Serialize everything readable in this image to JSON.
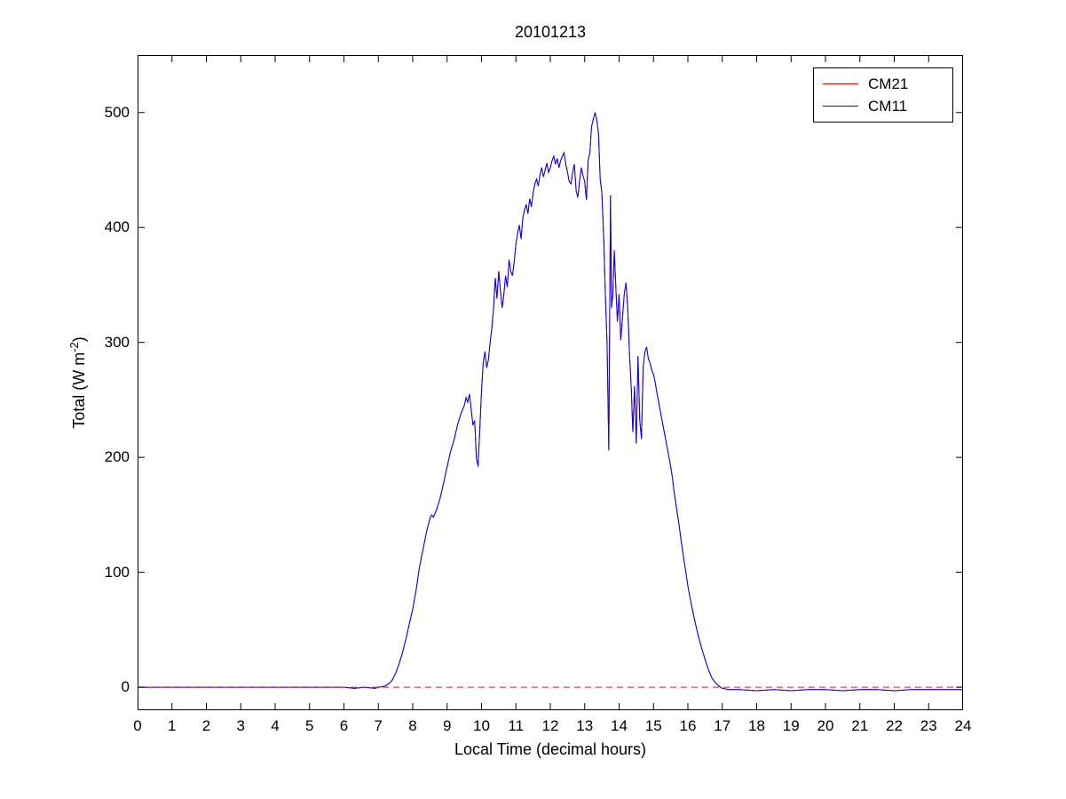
{
  "chart_data": {
    "type": "line",
    "title": "20101213",
    "xlabel": "Local Time (decimal hours)",
    "ylabel": "Total (W m^-2)",
    "ylabel_parts": {
      "prefix": "Total (W m",
      "sup": "-2",
      "suffix": ")"
    },
    "xlim": [
      0,
      24
    ],
    "ylim": [
      -20,
      550
    ],
    "xticks": [
      0,
      1,
      2,
      3,
      4,
      5,
      6,
      7,
      8,
      9,
      10,
      11,
      12,
      13,
      14,
      15,
      16,
      17,
      18,
      19,
      20,
      21,
      22,
      23,
      24
    ],
    "yticks": [
      0,
      100,
      200,
      300,
      400,
      500
    ],
    "grid": false,
    "legend_position": "top-right",
    "zero_line": {
      "y": 0,
      "color": "#cc2222",
      "style": "dashed"
    },
    "x": [
      0,
      0.5,
      1,
      1.5,
      2,
      2.5,
      3,
      3.5,
      4,
      4.5,
      5,
      5.5,
      6,
      6.3,
      6.6,
      6.9,
      7,
      7.2,
      7.3,
      7.4,
      7.5,
      7.6,
      7.7,
      7.8,
      7.9,
      8,
      8.1,
      8.2,
      8.3,
      8.4,
      8.5,
      8.55,
      8.6,
      8.7,
      8.8,
      8.9,
      9,
      9.1,
      9.2,
      9.3,
      9.4,
      9.5,
      9.55,
      9.6,
      9.65,
      9.7,
      9.75,
      9.8,
      9.85,
      9.9,
      9.95,
      10,
      10.05,
      10.1,
      10.15,
      10.2,
      10.25,
      10.3,
      10.35,
      10.4,
      10.45,
      10.5,
      10.55,
      10.6,
      10.65,
      10.7,
      10.75,
      10.8,
      10.85,
      10.9,
      10.95,
      11,
      11.05,
      11.1,
      11.15,
      11.2,
      11.25,
      11.3,
      11.35,
      11.4,
      11.45,
      11.5,
      11.55,
      11.6,
      11.65,
      11.7,
      11.75,
      11.8,
      11.85,
      11.9,
      11.95,
      12,
      12.05,
      12.1,
      12.15,
      12.2,
      12.25,
      12.3,
      12.35,
      12.4,
      12.45,
      12.5,
      12.55,
      12.6,
      12.65,
      12.7,
      12.75,
      12.8,
      12.85,
      12.9,
      12.95,
      13,
      13.05,
      13.1,
      13.15,
      13.2,
      13.25,
      13.3,
      13.35,
      13.4,
      13.45,
      13.5,
      13.55,
      13.6,
      13.65,
      13.7,
      13.75,
      13.78,
      13.82,
      13.86,
      13.9,
      13.95,
      14,
      14.05,
      14.1,
      14.15,
      14.2,
      14.25,
      14.3,
      14.35,
      14.4,
      14.45,
      14.5,
      14.55,
      14.6,
      14.65,
      14.7,
      14.75,
      14.8,
      14.85,
      14.9,
      14.95,
      15,
      15.05,
      15.1,
      15.15,
      15.2,
      15.25,
      15.3,
      15.35,
      15.4,
      15.45,
      15.5,
      15.55,
      15.6,
      15.65,
      15.7,
      15.75,
      15.8,
      15.85,
      15.9,
      15.95,
      16,
      16.1,
      16.2,
      16.3,
      16.4,
      16.5,
      16.6,
      16.7,
      16.8,
      16.9,
      17,
      17.2,
      17.5,
      18,
      18.5,
      19,
      19.5,
      20,
      20.5,
      21,
      21.5,
      22,
      22.5,
      23,
      23.5,
      24
    ],
    "series": [
      {
        "name": "CM21",
        "color": "#ff0000",
        "values": [
          0,
          0,
          0,
          0,
          0,
          0,
          0,
          0,
          0,
          0,
          0,
          0,
          0,
          -1,
          0,
          -1,
          0,
          1,
          3,
          6,
          12,
          20,
          30,
          42,
          55,
          68,
          85,
          105,
          120,
          135,
          147,
          150,
          148,
          155,
          165,
          178,
          192,
          205,
          215,
          228,
          238,
          245,
          252,
          248,
          255,
          242,
          228,
          232,
          200,
          192,
          225,
          258,
          282,
          292,
          278,
          285,
          300,
          312,
          330,
          356,
          338,
          362,
          345,
          330,
          342,
          358,
          348,
          372,
          362,
          358,
          370,
          386,
          395,
          402,
          390,
          408,
          415,
          420,
          412,
          425,
          418,
          430,
          438,
          442,
          436,
          446,
          452,
          444,
          450,
          456,
          448,
          452,
          458,
          462,
          455,
          460,
          452,
          458,
          462,
          465,
          455,
          448,
          440,
          438,
          448,
          455,
          432,
          426,
          440,
          452,
          445,
          440,
          424,
          458,
          465,
          488,
          494,
          500,
          494,
          482,
          442,
          430,
          392,
          342,
          300,
          206,
          428,
          330,
          342,
          380,
          352,
          318,
          342,
          302,
          322,
          342,
          352,
          330,
          292,
          262,
          222,
          262,
          212,
          288,
          232,
          216,
          278,
          292,
          296,
          286,
          282,
          276,
          272,
          265,
          256,
          248,
          240,
          232,
          224,
          216,
          208,
          200,
          192,
          182,
          170,
          160,
          150,
          140,
          128,
          118,
          108,
          98,
          88,
          72,
          58,
          45,
          34,
          24,
          15,
          8,
          4,
          1,
          -1,
          -2,
          -2,
          -3,
          -2,
          -3,
          -2,
          -2,
          -3,
          -2,
          -2,
          -3,
          -2,
          -2,
          -2,
          -2
        ]
      },
      {
        "name": "CM11",
        "color": "#0000ff",
        "values": [
          0,
          0,
          0,
          0,
          0,
          0,
          0,
          0,
          0,
          0,
          0,
          0,
          0,
          -1,
          0,
          -1,
          0,
          1,
          3,
          6,
          12,
          20,
          30,
          42,
          55,
          68,
          85,
          105,
          120,
          135,
          147,
          150,
          148,
          155,
          165,
          178,
          192,
          205,
          215,
          228,
          238,
          245,
          252,
          248,
          255,
          242,
          228,
          232,
          200,
          192,
          225,
          258,
          282,
          292,
          278,
          285,
          300,
          312,
          330,
          356,
          338,
          362,
          345,
          330,
          342,
          358,
          348,
          372,
          362,
          358,
          370,
          386,
          395,
          402,
          390,
          408,
          415,
          420,
          412,
          425,
          418,
          430,
          438,
          442,
          436,
          446,
          452,
          444,
          450,
          456,
          448,
          452,
          458,
          462,
          455,
          460,
          452,
          458,
          462,
          465,
          455,
          448,
          440,
          438,
          448,
          455,
          432,
          426,
          440,
          452,
          445,
          440,
          424,
          458,
          465,
          488,
          494,
          500,
          494,
          482,
          442,
          430,
          392,
          342,
          300,
          206,
          428,
          330,
          342,
          380,
          352,
          318,
          342,
          302,
          322,
          342,
          352,
          330,
          292,
          262,
          222,
          262,
          212,
          288,
          232,
          216,
          278,
          292,
          296,
          286,
          282,
          276,
          272,
          265,
          256,
          248,
          240,
          232,
          224,
          216,
          208,
          200,
          192,
          182,
          170,
          160,
          150,
          140,
          128,
          118,
          108,
          98,
          88,
          72,
          58,
          45,
          34,
          24,
          15,
          8,
          4,
          1,
          -1,
          -2,
          -2,
          -3,
          -2,
          -3,
          -2,
          -2,
          -3,
          -2,
          -2,
          -3,
          -2,
          -2,
          -2,
          -2
        ]
      }
    ]
  }
}
